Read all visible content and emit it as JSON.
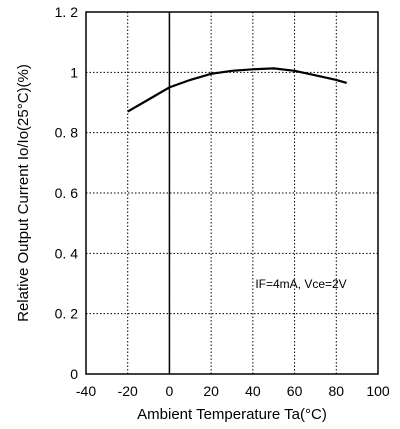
{
  "chart_data": {
    "type": "line",
    "title": "",
    "xlabel": "Ambient Temperature Ta(°C)",
    "ylabel": "Relative Output Current Io/Io(25°C)(%)",
    "xlim": [
      -40,
      100
    ],
    "ylim": [
      0,
      1.2
    ],
    "xticks": [
      -40,
      -20,
      0,
      20,
      40,
      60,
      80,
      100
    ],
    "yticks": [
      0,
      0.2,
      0.4,
      0.6,
      0.8,
      1,
      1.2
    ],
    "xtick_labels": [
      "-40",
      "-20",
      "0",
      "20",
      "40",
      "60",
      "80",
      "100"
    ],
    "ytick_labels": [
      "0",
      "0. 2",
      "0. 4",
      "0. 6",
      "0. 8",
      "1",
      "1. 2"
    ],
    "grid": true,
    "grid_style": "dotted",
    "annotation": "IF=4mA, Vce=2V",
    "series": [
      {
        "x": [
          -20,
          -10,
          0,
          10,
          20,
          30,
          40,
          50,
          60,
          70,
          80,
          85
        ],
        "y": [
          0.87,
          0.91,
          0.95,
          0.975,
          0.995,
          1.005,
          1.01,
          1.013,
          1.005,
          0.99,
          0.975,
          0.965
        ]
      }
    ],
    "line_color": "#000000"
  }
}
